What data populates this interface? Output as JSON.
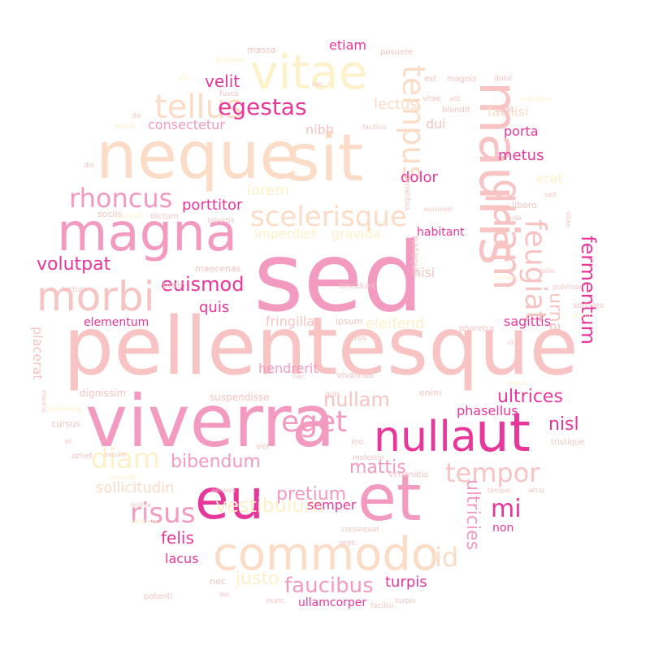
{
  "palette": {
    "deep": "#e8379a",
    "pink": "#f29ac0",
    "rose": "#f7c3c3",
    "peach": "#fbdcc6",
    "cream": "#fdf1c9"
  },
  "words": [
    {
      "text": "sed",
      "color": "pink"
    },
    {
      "text": "pellentesque",
      "color": "rose"
    },
    {
      "text": "viverra",
      "color": "pink"
    },
    {
      "text": "neque",
      "color": "peach"
    },
    {
      "text": "sit",
      "color": "peach"
    },
    {
      "text": "magna",
      "color": "pink"
    },
    {
      "text": "mauris",
      "color": "rose"
    },
    {
      "text": "et",
      "color": "pink"
    },
    {
      "text": "eu",
      "color": "deep"
    },
    {
      "text": "nulla",
      "color": "deep"
    },
    {
      "text": "ut",
      "color": "deep"
    },
    {
      "text": "commodo",
      "color": "peach"
    },
    {
      "text": "vitae",
      "color": "cream"
    },
    {
      "text": "morbi",
      "color": "rose"
    },
    {
      "text": "tellus",
      "color": "peach"
    },
    {
      "text": "quam",
      "color": "rose"
    },
    {
      "text": "scelerisque",
      "color": "peach"
    },
    {
      "text": "rhoncus",
      "color": "pink"
    },
    {
      "text": "egestas",
      "color": "deep"
    },
    {
      "text": "tempus",
      "color": "peach"
    },
    {
      "text": "feugiat",
      "color": "rose"
    },
    {
      "text": "volutpat",
      "color": "deep"
    },
    {
      "text": "euismod",
      "color": "deep"
    },
    {
      "text": "diam",
      "color": "cream"
    },
    {
      "text": "eget",
      "color": "pink"
    },
    {
      "text": "tempor",
      "color": "rose"
    },
    {
      "text": "risus",
      "color": "pink"
    },
    {
      "text": "id",
      "color": "peach"
    },
    {
      "text": "mi",
      "color": "deep"
    },
    {
      "text": "nullam",
      "color": "rose"
    },
    {
      "text": "bibendum",
      "color": "pink"
    },
    {
      "text": "faucibus",
      "color": "pink"
    },
    {
      "text": "vestibulum",
      "color": "cream"
    },
    {
      "text": "ultrices",
      "color": "deep"
    },
    {
      "text": "fermentum",
      "color": "deep"
    },
    {
      "text": "velit",
      "color": "deep"
    },
    {
      "text": "lectus",
      "color": "peach"
    },
    {
      "text": "urna",
      "color": "rose"
    },
    {
      "text": "mattis",
      "color": "pink"
    },
    {
      "text": "pretium",
      "color": "pink"
    },
    {
      "text": "ultricies",
      "color": "pink"
    },
    {
      "text": "nisl",
      "color": "deep"
    },
    {
      "text": "quis",
      "color": "deep"
    },
    {
      "text": "justo",
      "color": "cream"
    },
    {
      "text": "felis",
      "color": "deep"
    },
    {
      "text": "sollicitudin",
      "color": "peach"
    },
    {
      "text": "placerat",
      "color": "rose"
    },
    {
      "text": "dolor",
      "color": "deep"
    },
    {
      "text": "metus",
      "color": "deep"
    },
    {
      "text": "porta",
      "color": "deep"
    },
    {
      "text": "facilisi",
      "color": "peach"
    },
    {
      "text": "erat",
      "color": "cream"
    },
    {
      "text": "lorem",
      "color": "cream"
    },
    {
      "text": "imperdiet",
      "color": "cream"
    },
    {
      "text": "gravida",
      "color": "cream"
    },
    {
      "text": "consectetur",
      "color": "pink"
    },
    {
      "text": "nibh",
      "color": "rose"
    },
    {
      "text": "dui",
      "color": "rose"
    },
    {
      "text": "porttitor",
      "color": "deep"
    },
    {
      "text": "eleifend",
      "color": "cream"
    },
    {
      "text": "fringilla",
      "color": "rose"
    },
    {
      "text": "sagittis",
      "color": "deep"
    },
    {
      "text": "hendrerit",
      "color": "pink"
    },
    {
      "text": "phasellus",
      "color": "deep"
    },
    {
      "text": "elementum",
      "color": "deep"
    },
    {
      "text": "etiam",
      "color": "deep"
    },
    {
      "text": "semper",
      "color": "deep"
    },
    {
      "text": "turpis",
      "color": "deep"
    },
    {
      "text": "lacus",
      "color": "deep"
    },
    {
      "text": "non",
      "color": "deep"
    },
    {
      "text": "habitant",
      "color": "deep"
    },
    {
      "text": "nisi",
      "color": "rose"
    },
    {
      "text": "ullamcorper",
      "color": "deep"
    },
    {
      "text": "dignissim",
      "color": "rose"
    },
    {
      "text": "suspendisse",
      "color": "rose"
    },
    {
      "text": "massa",
      "color": "rose"
    },
    {
      "text": "posuere",
      "color": "rose"
    },
    {
      "text": "maecenas",
      "color": "rose"
    },
    {
      "text": "enim",
      "color": "rose"
    },
    {
      "text": "vivamus",
      "color": "rose"
    },
    {
      "text": "cursus",
      "color": "rose"
    },
    {
      "text": "proin",
      "color": "rose"
    },
    {
      "text": "sociis",
      "color": "rose"
    },
    {
      "text": "dictum",
      "color": "rose"
    },
    {
      "text": "tincidunt",
      "color": "rose"
    },
    {
      "text": "ipsum",
      "color": "rose"
    },
    {
      "text": "eros",
      "color": "rose"
    },
    {
      "text": "vel",
      "color": "rose"
    },
    {
      "text": "leo.",
      "color": "rose"
    },
    {
      "text": "nec",
      "color": "rose"
    },
    {
      "text": "nunc",
      "color": "rose"
    },
    {
      "text": "amet",
      "color": "rose"
    },
    {
      "text": "luctus",
      "color": "rose"
    },
    {
      "text": "lobortis",
      "color": "rose"
    },
    {
      "text": "pharetra",
      "color": "rose"
    },
    {
      "text": "sodales",
      "color": "rose"
    },
    {
      "text": "pulvinar",
      "color": "rose"
    },
    {
      "text": "tristique",
      "color": "rose"
    },
    {
      "text": "venenatis",
      "color": "rose"
    },
    {
      "text": "potenti",
      "color": "rose"
    },
    {
      "text": "natoque",
      "color": "rose"
    },
    {
      "text": "penatibus",
      "color": "rose"
    },
    {
      "text": "libero",
      "color": "rose"
    },
    {
      "text": "blandit",
      "color": "rose"
    },
    {
      "text": "magnis",
      "color": "rose"
    },
    {
      "text": "eget.",
      "color": "rose"
    },
    {
      "text": "quisque",
      "color": "cream"
    },
    {
      "text": "elit",
      "color": "cream"
    },
    {
      "text": "fusce",
      "color": "rose"
    },
    {
      "text": "do",
      "color": "rose"
    },
    {
      "text": "mollis",
      "color": "cream"
    },
    {
      "text": "dis",
      "color": "rose"
    },
    {
      "text": "est",
      "color": "rose"
    },
    {
      "text": "vitae",
      "color": "rose"
    },
    {
      "text": "dolor",
      "color": "rose"
    },
    {
      "text": "vulputate",
      "color": "cream"
    },
    {
      "text": "facilisis",
      "color": "rose"
    },
    {
      "text": "nulla",
      "color": "rose"
    },
    {
      "text": "sed.",
      "color": "rose"
    },
    {
      "text": "euismod",
      "color": "rose"
    },
    {
      "text": "suscipit",
      "color": "cream"
    },
    {
      "text": "varius",
      "color": "cream"
    },
    {
      "text": "lacinia",
      "color": "rose"
    },
    {
      "text": "vehicula",
      "color": "cream"
    },
    {
      "text": "donec",
      "color": "cream"
    },
    {
      "text": "tortor",
      "color": "cream"
    },
    {
      "text": "molestie",
      "color": "rose"
    },
    {
      "text": "arcu",
      "color": "rose"
    },
    {
      "text": "quis.",
      "color": "rose"
    },
    {
      "text": "consequat",
      "color": "rose"
    },
    {
      "text": "ut.",
      "color": "rose"
    },
    {
      "text": "elit.",
      "color": "rose"
    },
    {
      "text": "nec.",
      "color": "rose"
    },
    {
      "text": "et.",
      "color": "rose"
    },
    {
      "text": "eros.",
      "color": "rose"
    },
    {
      "text": "turpis",
      "color": "rose"
    },
    {
      "text": "iaculis",
      "color": "rose"
    },
    {
      "text": "mauris.",
      "color": "rose"
    },
    {
      "text": "adipiscing",
      "color": "cream"
    },
    {
      "text": "facilisi.",
      "color": "rose"
    },
    {
      "text": "leo.",
      "color": "rose"
    },
    {
      "text": "nec",
      "color": "rose"
    },
    {
      "text": "convallis",
      "color": "cream"
    },
    {
      "text": "odio",
      "color": "rose"
    },
    {
      "text": "aenean",
      "color": "rose"
    },
    {
      "text": "tempor.",
      "color": "rose"
    },
    {
      "text": "vitae.",
      "color": "rose"
    },
    {
      "text": "tellus",
      "color": "rose"
    }
  ]
}
